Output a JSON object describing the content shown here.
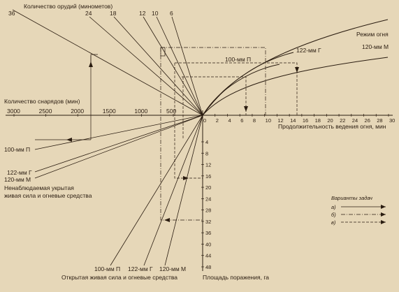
{
  "labels": {
    "guns_count": "Количество орудий (минометов)",
    "shells_count": "Количество снарядов (мин)",
    "fire_mode": "Режим огня",
    "duration_axis": "Продолжительность ведения огня, мин",
    "area_axis": "Площадь поражения, га",
    "hidden_force": "Ненаблюдаемая укрытая",
    "hidden_force_2": "живая сила и огневые средства",
    "open_force": "Открытая живая сила и огневые средства",
    "variants_title": "Варианты задач",
    "variant_a": "а)",
    "variant_b": "б)",
    "variant_c": "в)"
  },
  "guns_ticks": [
    "36",
    "24",
    "18",
    "12",
    "10",
    "6"
  ],
  "shell_ticks": [
    "3000",
    "2500",
    "2000",
    "1500",
    "1000",
    "500"
  ],
  "time_ticks": [
    "0",
    "2",
    "4",
    "6",
    "8",
    "10",
    "12",
    "14",
    "16",
    "18",
    "20",
    "22",
    "24",
    "26",
    "28",
    "30"
  ],
  "area_ticks": [
    "4",
    "8",
    "12",
    "16",
    "20",
    "24",
    "28",
    "32",
    "36",
    "40",
    "44",
    "48"
  ],
  "curve_labels": {
    "mode_100P": "100-мм П",
    "mode_122G": "122-мм Г",
    "mode_120M": "120-мм М"
  },
  "hidden_labels": {
    "h_100P": "100-мм П",
    "h_122G": "122-мм Г",
    "h_120M": "120-мм М"
  },
  "open_labels": {
    "o_100P": "100-мм П",
    "o_122G": "122-мм Г",
    "o_120M": "120-мм М"
  },
  "colors": {
    "background": "#e6d7b8",
    "ink": "#2a1c10"
  }
}
